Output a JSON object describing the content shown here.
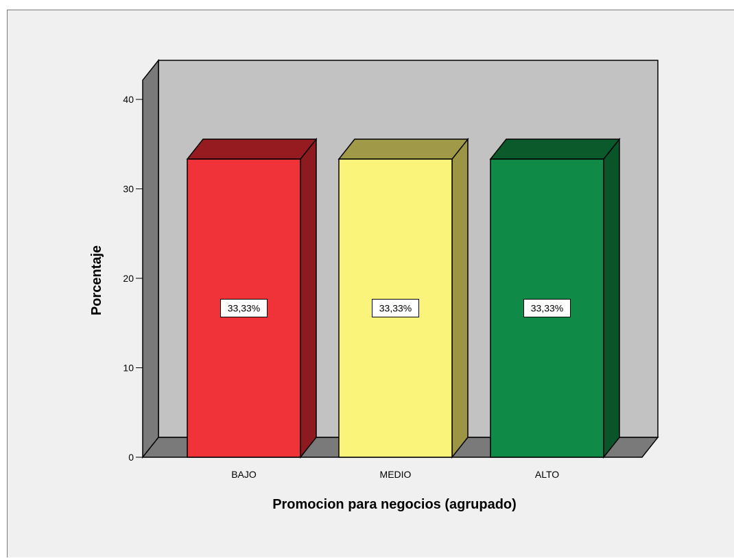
{
  "chart_data": {
    "type": "bar",
    "style": "3d",
    "categories": [
      "BAJO",
      "MEDIO",
      "ALTO"
    ],
    "values": [
      33.33,
      33.33,
      33.33
    ],
    "data_labels": [
      "33,33%",
      "33,33%",
      "33,33%"
    ],
    "xlabel": "Promocion para negocios (agrupado)",
    "ylabel": "Porcentaje",
    "ylim": [
      0,
      40
    ],
    "yticks": [
      0,
      10,
      20,
      30,
      40
    ],
    "grid": false,
    "legend": "none",
    "colors": {
      "bars": [
        "#ef3338",
        "#faf57a",
        "#0f8a47"
      ],
      "bar_tops": [
        "#951b20",
        "#a09a48",
        "#0b5a2c"
      ],
      "bar_sides": [
        "#8c1a1f",
        "#9c9545",
        "#0a5429"
      ],
      "back_wall": "#c2c2c2",
      "side_wall": "#7a7a7a",
      "floor": "#7a7a7a",
      "background": "#f0f0f0"
    }
  }
}
